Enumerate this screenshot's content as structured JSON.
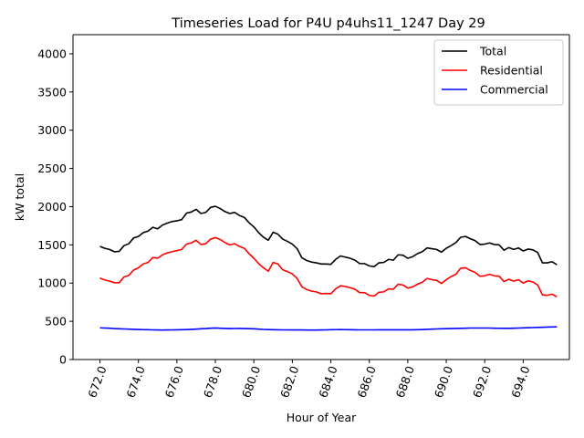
{
  "chart_data": {
    "type": "line",
    "title": "Timeseries Load for P4U p4uhs11_1247  Day 29",
    "xlabel": "Hour of Year",
    "ylabel": "kW total",
    "xlim": [
      670.6,
      696.4
    ],
    "ylim": [
      0,
      4250
    ],
    "xticks": [
      672,
      674,
      676,
      678,
      680,
      682,
      684,
      686,
      688,
      690,
      692,
      694
    ],
    "xtick_labels": [
      "672.0",
      "674.0",
      "676.0",
      "678.0",
      "680.0",
      "682.0",
      "684.0",
      "686.0",
      "688.0",
      "690.0",
      "692.0",
      "694.0"
    ],
    "yticks": [
      0,
      500,
      1000,
      1500,
      2000,
      2500,
      3000,
      3500,
      4000
    ],
    "ytick_labels": [
      "0",
      "500",
      "1000",
      "1500",
      "2000",
      "2500",
      "3000",
      "3500",
      "4000"
    ],
    "legend_position": "top-right",
    "x_start": 672.0,
    "x_step": 0.25,
    "series": [
      {
        "name": "Total",
        "color": "#000000",
        "values": [
          1480,
          1455,
          1440,
          1410,
          1415,
          1490,
          1515,
          1590,
          1610,
          1660,
          1680,
          1730,
          1710,
          1760,
          1785,
          1805,
          1815,
          1830,
          1915,
          1930,
          1965,
          1910,
          1925,
          1990,
          2005,
          1975,
          1935,
          1910,
          1925,
          1885,
          1860,
          1790,
          1735,
          1660,
          1600,
          1560,
          1665,
          1640,
          1575,
          1545,
          1510,
          1450,
          1330,
          1295,
          1275,
          1265,
          1250,
          1250,
          1245,
          1310,
          1355,
          1340,
          1325,
          1300,
          1255,
          1255,
          1225,
          1215,
          1265,
          1270,
          1310,
          1300,
          1370,
          1365,
          1325,
          1345,
          1385,
          1410,
          1460,
          1450,
          1440,
          1405,
          1455,
          1490,
          1530,
          1600,
          1610,
          1580,
          1555,
          1505,
          1510,
          1525,
          1505,
          1500,
          1430,
          1465,
          1440,
          1460,
          1420,
          1445,
          1435,
          1400,
          1265,
          1265,
          1280,
          1240
        ]
      },
      {
        "name": "Residential",
        "color": "#ff0000",
        "values": [
          1065,
          1040,
          1025,
          1005,
          1005,
          1080,
          1100,
          1170,
          1200,
          1250,
          1270,
          1335,
          1325,
          1370,
          1395,
          1410,
          1425,
          1440,
          1510,
          1525,
          1560,
          1505,
          1515,
          1575,
          1595,
          1570,
          1530,
          1500,
          1515,
          1480,
          1455,
          1385,
          1325,
          1255,
          1200,
          1155,
          1270,
          1250,
          1175,
          1150,
          1120,
          1060,
          950,
          915,
          895,
          885,
          860,
          865,
          860,
          925,
          965,
          955,
          940,
          920,
          875,
          875,
          840,
          830,
          880,
          885,
          925,
          920,
          985,
          975,
          935,
          950,
          985,
          1010,
          1060,
          1045,
          1035,
          995,
          1045,
          1085,
          1115,
          1195,
          1200,
          1165,
          1140,
          1090,
          1095,
          1115,
          1095,
          1090,
          1020,
          1050,
          1025,
          1045,
          1000,
          1030,
          1015,
          975,
          845,
          840,
          855,
          820
        ]
      },
      {
        "name": "Commercial",
        "color": "#0000ff",
        "values": [
          415,
          412,
          410,
          405,
          402,
          400,
          398,
          395,
          393,
          391,
          390,
          388,
          387,
          386,
          387,
          388,
          389,
          390,
          392,
          395,
          398,
          402,
          405,
          410,
          413,
          410,
          407,
          405,
          406,
          407,
          405,
          404,
          402,
          398,
          394,
          392,
          390,
          389,
          388,
          388,
          387,
          387,
          387,
          386,
          386,
          386,
          387,
          388,
          390,
          391,
          392,
          391,
          390,
          389,
          388,
          388,
          388,
          388,
          389,
          389,
          389,
          389,
          389,
          389,
          389,
          389,
          390,
          392,
          395,
          398,
          400,
          402,
          404,
          405,
          407,
          408,
          410,
          412,
          412,
          412,
          412,
          412,
          410,
          409,
          408,
          408,
          410,
          412,
          414,
          416,
          418,
          420,
          422,
          424,
          426,
          428
        ]
      }
    ]
  }
}
